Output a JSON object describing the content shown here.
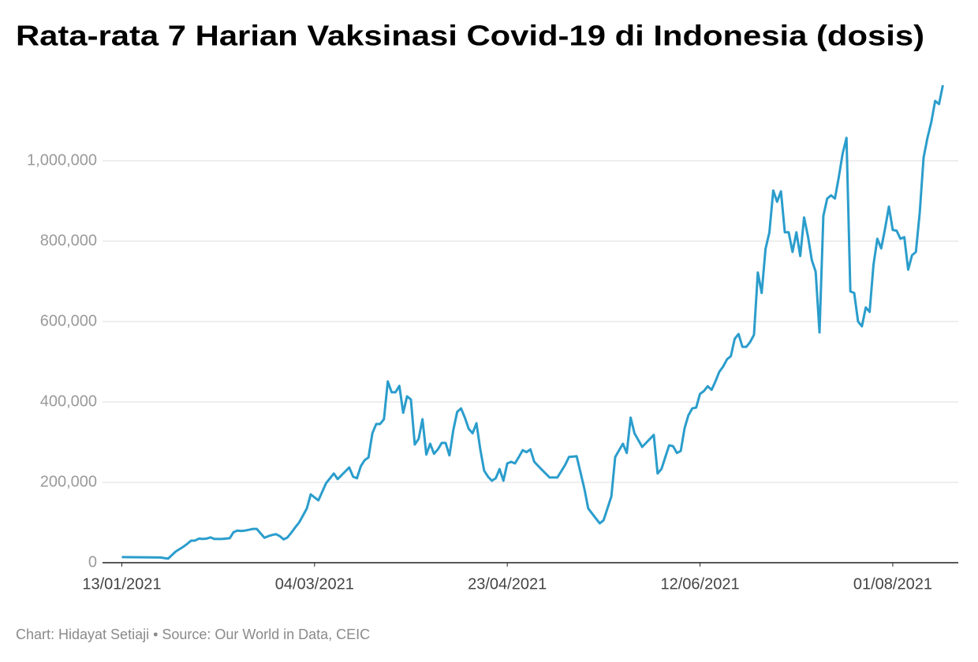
{
  "chart_data": {
    "type": "line",
    "title": "Rata-rata 7 Harian Vaksinasi Covid-19 di Indonesia (dosis)",
    "footer": "Chart: Hidayat Setiaji • Source: Our World in Data, CEIC",
    "color": "#2a9dcc",
    "grid": true,
    "xlim": [
      "08/01/2021",
      "18/08/2021"
    ],
    "xticks": [
      "13/01/2021",
      "04/03/2021",
      "23/04/2021",
      "12/06/2021",
      "01/08/2021"
    ],
    "ylim": [
      0,
      1200000
    ],
    "yticks": [
      0,
      {
        "value": 200000,
        "label": "200,000"
      },
      {
        "value": 400000,
        "label": "400,000"
      },
      {
        "value": 600000,
        "label": "600,000"
      },
      {
        "value": 800000,
        "label": "800,000"
      },
      {
        "value": 1000000,
        "label": "1,000,000"
      }
    ],
    "x": [
      "13/01/2021",
      "23/01/2021",
      "25/01/2021",
      "27/01/2021",
      "29/01/2021",
      "30/01/2021",
      "31/01/2021",
      "01/02/2021",
      "02/02/2021",
      "03/02/2021",
      "04/02/2021",
      "05/02/2021",
      "06/02/2021",
      "08/02/2021",
      "10/02/2021",
      "11/02/2021",
      "12/02/2021",
      "13/02/2021",
      "14/02/2021",
      "15/02/2021",
      "16/02/2021",
      "17/02/2021",
      "19/02/2021",
      "20/02/2021",
      "21/02/2021",
      "22/02/2021",
      "23/02/2021",
      "24/02/2021",
      "25/02/2021",
      "26/02/2021",
      "27/02/2021",
      "28/02/2021",
      "02/03/2021",
      "03/03/2021",
      "05/03/2021",
      "07/03/2021",
      "09/03/2021",
      "10/03/2021",
      "13/03/2021",
      "14/03/2021",
      "15/03/2021",
      "16/03/2021",
      "17/03/2021",
      "18/03/2021",
      "19/03/2021",
      "20/03/2021",
      "21/03/2021",
      "22/03/2021",
      "23/03/2021",
      "24/03/2021",
      "25/03/2021",
      "26/03/2021",
      "27/03/2021",
      "28/03/2021",
      "29/03/2021",
      "30/03/2021",
      "31/03/2021",
      "01/04/2021",
      "02/04/2021",
      "03/04/2021",
      "04/04/2021",
      "05/04/2021",
      "06/04/2021",
      "07/04/2021",
      "08/04/2021",
      "09/04/2021",
      "10/04/2021",
      "11/04/2021",
      "12/04/2021",
      "13/04/2021",
      "14/04/2021",
      "15/04/2021",
      "16/04/2021",
      "17/04/2021",
      "18/04/2021",
      "19/04/2021",
      "20/04/2021",
      "21/04/2021",
      "22/04/2021",
      "23/04/2021",
      "24/04/2021",
      "25/04/2021",
      "26/04/2021",
      "27/04/2021",
      "28/04/2021",
      "29/04/2021",
      "30/04/2021",
      "02/05/2021",
      "04/05/2021",
      "06/05/2021",
      "08/05/2021",
      "09/05/2021",
      "11/05/2021",
      "13/05/2021",
      "14/05/2021",
      "16/05/2021",
      "17/05/2021",
      "18/05/2021",
      "20/05/2021",
      "21/05/2021",
      "23/05/2021",
      "24/05/2021",
      "25/05/2021",
      "26/05/2021",
      "28/05/2021",
      "29/05/2021",
      "31/05/2021",
      "01/06/2021",
      "02/06/2021",
      "03/06/2021",
      "04/06/2021",
      "05/06/2021",
      "06/06/2021",
      "07/06/2021",
      "08/06/2021",
      "09/06/2021",
      "10/06/2021",
      "11/06/2021",
      "12/06/2021",
      "13/06/2021",
      "14/06/2021",
      "15/06/2021",
      "16/06/2021",
      "17/06/2021",
      "18/06/2021",
      "19/06/2021",
      "20/06/2021",
      "21/06/2021",
      "22/06/2021",
      "23/06/2021",
      "24/06/2021",
      "25/06/2021",
      "26/06/2021",
      "27/06/2021",
      "28/06/2021",
      "29/06/2021",
      "30/06/2021",
      "01/07/2021",
      "02/07/2021",
      "03/07/2021",
      "04/07/2021",
      "05/07/2021",
      "06/07/2021",
      "07/07/2021",
      "08/07/2021",
      "09/07/2021",
      "10/07/2021",
      "11/07/2021",
      "12/07/2021",
      "13/07/2021",
      "14/07/2021",
      "15/07/2021",
      "16/07/2021",
      "17/07/2021",
      "18/07/2021",
      "19/07/2021",
      "20/07/2021",
      "21/07/2021",
      "22/07/2021",
      "23/07/2021",
      "24/07/2021",
      "25/07/2021",
      "26/07/2021",
      "27/07/2021",
      "28/07/2021",
      "29/07/2021",
      "30/07/2021",
      "31/07/2021",
      "01/08/2021",
      "02/08/2021",
      "03/08/2021",
      "04/08/2021",
      "05/08/2021",
      "06/08/2021",
      "07/08/2021",
      "08/08/2021",
      "09/08/2021",
      "10/08/2021",
      "11/08/2021",
      "12/08/2021",
      "13/08/2021",
      "14/08/2021"
    ],
    "values": [
      14000,
      13000,
      10000,
      28000,
      40000,
      47000,
      55000,
      55000,
      60000,
      59000,
      60000,
      63000,
      59000,
      59000,
      61000,
      76000,
      80000,
      79000,
      80000,
      82000,
      84000,
      84000,
      62000,
      66000,
      69000,
      71000,
      66000,
      58000,
      63000,
      75000,
      88000,
      100000,
      135000,
      170000,
      155000,
      198000,
      222000,
      208000,
      237000,
      214000,
      210000,
      240000,
      255000,
      262000,
      322000,
      345000,
      345000,
      357000,
      451000,
      424000,
      424000,
      440000,
      373000,
      414000,
      406000,
      294000,
      308000,
      357000,
      269000,
      296000,
      271000,
      282000,
      298000,
      298000,
      267000,
      330000,
      375000,
      384000,
      361000,
      333000,
      322000,
      347000,
      282000,
      229000,
      214000,
      204000,
      210000,
      233000,
      204000,
      247000,
      251000,
      247000,
      263000,
      280000,
      275000,
      282000,
      251000,
      231000,
      212000,
      212000,
      243000,
      263000,
      265000,
      184000,
      135000,
      110000,
      98000,
      106000,
      165000,
      263000,
      296000,
      273000,
      361000,
      322000,
      288000,
      298000,
      318000,
      222000,
      233000,
      263000,
      292000,
      290000,
      273000,
      278000,
      335000,
      367000,
      384000,
      386000,
      420000,
      427000,
      439000,
      430000,
      451000,
      475000,
      488000,
      506000,
      514000,
      557000,
      569000,
      537000,
      537000,
      549000,
      567000,
      722000,
      671000,
      781000,
      822000,
      926000,
      898000,
      924000,
      822000,
      822000,
      773000,
      822000,
      763000,
      859000,
      812000,
      753000,
      724000,
      573000,
      863000,
      906000,
      914000,
      906000,
      959000,
      1018000,
      1057000,
      675000,
      671000,
      600000,
      588000,
      635000,
      624000,
      741000,
      806000,
      782000,
      831000,
      886000,
      828000,
      826000,
      806000,
      810000,
      729000,
      765000,
      773000,
      871000,
      1008000,
      1057000,
      1096000,
      1149000,
      1141000,
      1188000
    ]
  }
}
